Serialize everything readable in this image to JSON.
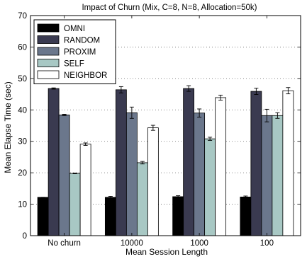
{
  "chart_data": {
    "type": "bar",
    "title": "Impact of Churn (Mix, C=8, N=8, Allocation=50k)",
    "xlabel": "Mean Session Length",
    "ylabel": "Mean Elapse Time (sec)",
    "ylim": [
      0,
      70
    ],
    "yticks": [
      "0",
      "10",
      "20",
      "30",
      "40",
      "50",
      "60",
      "70"
    ],
    "grid": "horizontal-dotted",
    "legend_position": "top-left",
    "categories": [
      "No churn",
      "10000",
      "1000",
      "100"
    ],
    "series": [
      {
        "name": "OMNI",
        "color": "#000000",
        "values": [
          12.2,
          12.2,
          12.4,
          12.3
        ],
        "errors": [
          0.0,
          0.3,
          0.3,
          0.3
        ]
      },
      {
        "name": "RANDOM",
        "color": "#3a3a50",
        "values": [
          46.8,
          46.4,
          46.8,
          45.9
        ],
        "errors": [
          0.2,
          1.0,
          0.9,
          1.0
        ]
      },
      {
        "name": "PROXIM",
        "color": "#6b778c",
        "values": [
          38.4,
          39.1,
          39.0,
          38.2
        ],
        "errors": [
          0.2,
          1.8,
          1.3,
          2.0
        ]
      },
      {
        "name": "SELF",
        "color": "#a8c8c4",
        "values": [
          19.8,
          23.2,
          30.8,
          38.2
        ],
        "errors": [
          0.1,
          0.4,
          0.5,
          0.9
        ]
      },
      {
        "name": "NEIGHBOR",
        "color": "#ffffff",
        "values": [
          29.1,
          34.3,
          43.9,
          46.1
        ],
        "errors": [
          0.4,
          0.8,
          0.8,
          1.0
        ]
      }
    ]
  }
}
